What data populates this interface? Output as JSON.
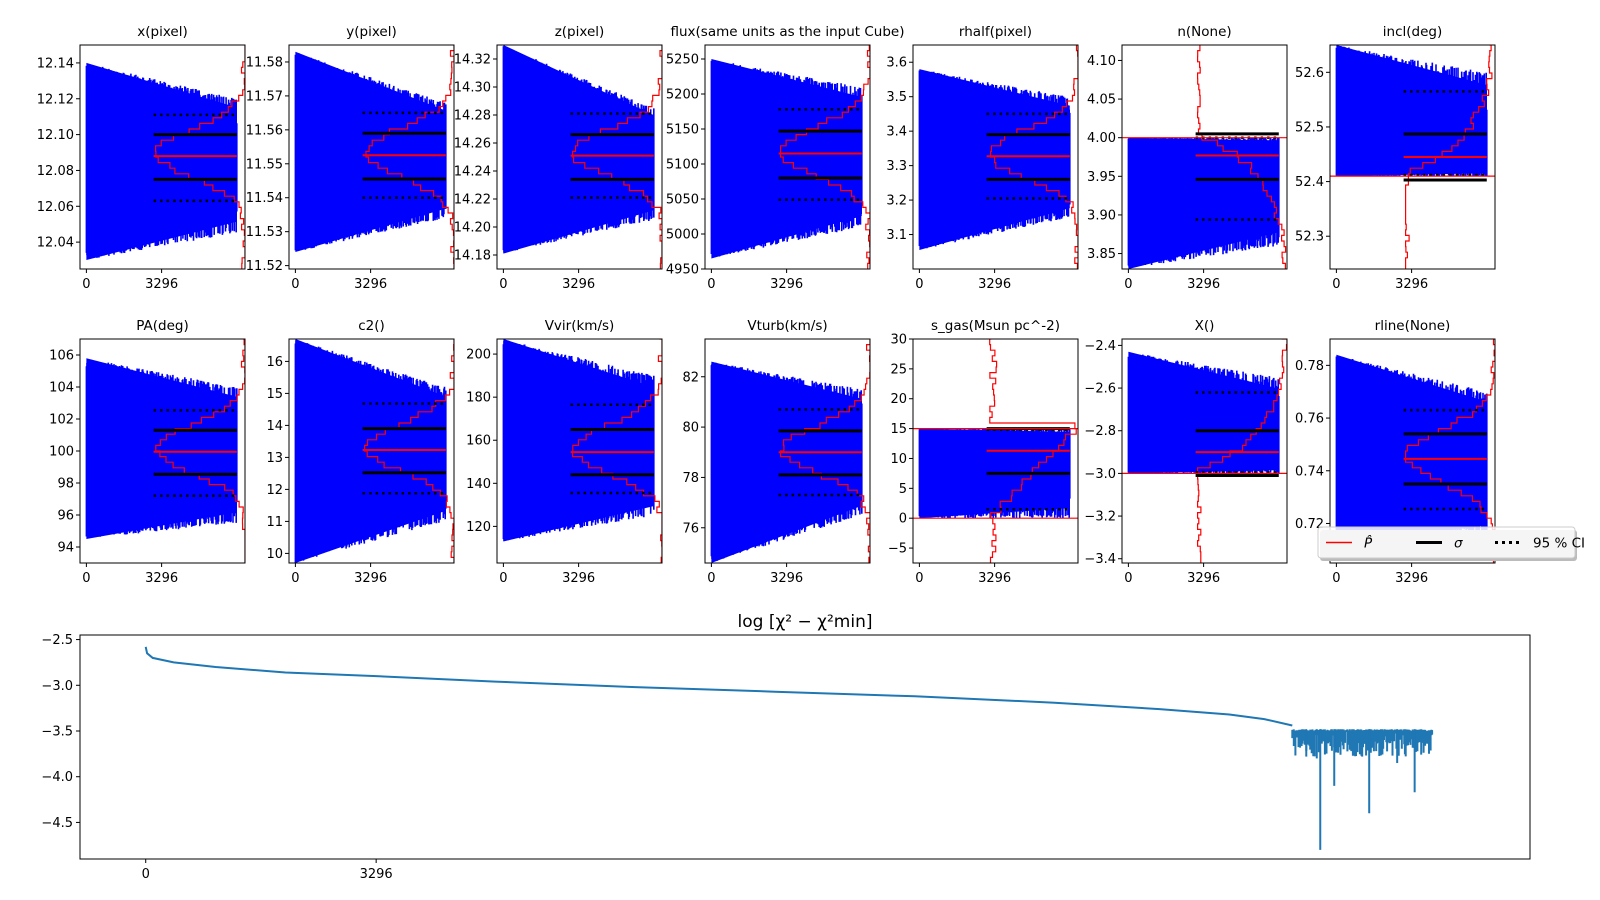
{
  "figure": {
    "x_tick_labels": [
      "0",
      "3296"
    ],
    "x_tick_values": [
      0,
      3296
    ],
    "n_steps": 6592,
    "n_steps_loss": 20000,
    "colors": {
      "trace": "#0000ff",
      "estimate": "#ff0000",
      "sigma": "#000000",
      "ci": "#000000",
      "loss": "#1f77b4",
      "frame": "#000000"
    }
  },
  "legend": {
    "placement": "lower-right of last panel",
    "items": [
      {
        "label": "P̂",
        "style": "red-solid"
      },
      {
        "label": "σ",
        "style": "black-solid"
      },
      {
        "label": "95 % CI",
        "style": "black-dotted"
      }
    ]
  },
  "chart_data": [
    {
      "type": "line",
      "title": "x(pixel)",
      "ylim": [
        12.025,
        12.15
      ],
      "yticks": [
        12.04,
        12.06,
        12.08,
        12.1,
        12.12,
        12.14
      ],
      "ytick_labels": [
        "12.04",
        "12.06",
        "12.08",
        "12.10",
        "12.12",
        "12.14"
      ],
      "estimate": 12.088,
      "sigma": [
        12.075,
        12.1
      ],
      "ci95": [
        12.063,
        12.111
      ],
      "trace_range": [
        12.03,
        12.14
      ],
      "late_range": [
        12.045,
        12.12
      ],
      "bound": null
    },
    {
      "type": "line",
      "title": "y(pixel)",
      "ylim": [
        11.519,
        11.585
      ],
      "yticks": [
        11.52,
        11.53,
        11.54,
        11.55,
        11.56,
        11.57,
        11.58
      ],
      "ytick_labels": [
        "11.52",
        "11.53",
        "11.54",
        "11.55",
        "11.56",
        "11.57",
        "11.58"
      ],
      "estimate": 11.5525,
      "sigma": [
        11.5455,
        11.559
      ],
      "ci95": [
        11.54,
        11.565
      ],
      "trace_range": [
        11.524,
        11.583
      ],
      "late_range": [
        11.534,
        11.568
      ],
      "bound": null
    },
    {
      "type": "line",
      "title": "z(pixel)",
      "ylim": [
        14.17,
        14.33
      ],
      "yticks": [
        14.18,
        14.2,
        14.22,
        14.24,
        14.26,
        14.28,
        14.3,
        14.32
      ],
      "ytick_labels": [
        "14.18",
        "14.20",
        "14.22",
        "14.24",
        "14.26",
        "14.28",
        "14.30",
        "14.32"
      ],
      "estimate": 14.251,
      "sigma": [
        14.234,
        14.266
      ],
      "ci95": [
        14.221,
        14.281
      ],
      "trace_range": [
        14.181,
        14.33
      ],
      "late_range": [
        14.205,
        14.285
      ],
      "bound": null
    },
    {
      "type": "line",
      "title": "flux(same units as the input Cube)",
      "ylim": [
        4950,
        5270
      ],
      "yticks": [
        4950,
        5000,
        5050,
        5100,
        5150,
        5200,
        5250
      ],
      "ytick_labels": [
        "4950",
        "5000",
        "5050",
        "5100",
        "5150",
        "5200",
        "5250"
      ],
      "estimate": 5115,
      "sigma": [
        5080,
        5147
      ],
      "ci95": [
        5049,
        5178
      ],
      "trace_range": [
        4965,
        5250
      ],
      "late_range": [
        5010,
        5210
      ],
      "bound": null
    },
    {
      "type": "line",
      "title": "rhalf(pixel)",
      "ylim": [
        3.0,
        3.65
      ],
      "yticks": [
        3.1,
        3.2,
        3.3,
        3.4,
        3.5,
        3.6
      ],
      "ytick_labels": [
        "3.1",
        "3.2",
        "3.3",
        "3.4",
        "3.5",
        "3.6"
      ],
      "estimate": 3.327,
      "sigma": [
        3.26,
        3.39
      ],
      "ci95": [
        3.205,
        3.45
      ],
      "trace_range": [
        3.055,
        3.58
      ],
      "late_range": [
        3.15,
        3.5
      ],
      "bound": null
    },
    {
      "type": "line",
      "title": "n(None)",
      "ylim": [
        3.83,
        4.12
      ],
      "yticks": [
        3.85,
        3.9,
        3.95,
        4.0,
        4.05,
        4.1
      ],
      "ytick_labels": [
        "3.85",
        "3.90",
        "3.95",
        "4.00",
        "4.05",
        "4.10"
      ],
      "estimate": 3.977,
      "sigma": [
        3.946,
        4.005
      ],
      "ci95": [
        3.894,
        4.0
      ],
      "trace_range": [
        3.83,
        4.0
      ],
      "late_range": [
        3.86,
        4.0
      ],
      "bound": 4.0,
      "bound_side": "upper"
    },
    {
      "type": "line",
      "title": "incl(deg)",
      "ylim": [
        52.24,
        52.65
      ],
      "yticks": [
        52.3,
        52.4,
        52.5,
        52.6
      ],
      "ytick_labels": [
        "52.3",
        "52.4",
        "52.5",
        "52.6"
      ],
      "estimate": 52.445,
      "sigma": [
        52.403,
        52.487
      ],
      "ci95": [
        52.412,
        52.565
      ],
      "trace_range": [
        52.41,
        52.65
      ],
      "late_range": [
        52.41,
        52.6
      ],
      "bound": 52.41,
      "bound_side": "lower"
    },
    {
      "type": "line",
      "title": "PA(deg)",
      "ylim": [
        93,
        107
      ],
      "yticks": [
        94,
        96,
        98,
        100,
        102,
        104,
        106
      ],
      "ytick_labels": [
        "94",
        "96",
        "98",
        "100",
        "102",
        "104",
        "106"
      ],
      "estimate": 99.95,
      "sigma": [
        98.55,
        101.3
      ],
      "ci95": [
        97.2,
        102.55
      ],
      "trace_range": [
        94.5,
        105.8
      ],
      "late_range": [
        95.5,
        104
      ],
      "bound": null
    },
    {
      "type": "line",
      "title": "c2()",
      "ylim": [
        9.7,
        16.7
      ],
      "yticks": [
        10,
        11,
        12,
        13,
        14,
        15,
        16
      ],
      "ytick_labels": [
        "10",
        "11",
        "12",
        "13",
        "14",
        "15",
        "16"
      ],
      "estimate": 13.23,
      "sigma": [
        12.52,
        13.9
      ],
      "ci95": [
        11.88,
        14.68
      ],
      "trace_range": [
        9.7,
        16.7
      ],
      "late_range": [
        11.0,
        15.2
      ],
      "bound": null
    },
    {
      "type": "line",
      "title": "Vvir(km/s)",
      "ylim": [
        103,
        207
      ],
      "yticks": [
        120,
        140,
        160,
        180,
        200
      ],
      "ytick_labels": [
        "120",
        "140",
        "160",
        "180",
        "200"
      ],
      "estimate": 154.5,
      "sigma": [
        144,
        165
      ],
      "ci95": [
        135.5,
        176.5
      ],
      "trace_range": [
        113,
        207
      ],
      "late_range": [
        125,
        190
      ],
      "bound": null
    },
    {
      "type": "line",
      "title": "Vturb(km/s)",
      "ylim": [
        74.6,
        83.5
      ],
      "yticks": [
        76,
        78,
        80,
        82
      ],
      "ytick_labels": [
        "76",
        "78",
        "80",
        "82"
      ],
      "estimate": 79.0,
      "sigma": [
        78.1,
        79.85
      ],
      "ci95": [
        77.3,
        80.7
      ],
      "trace_range": [
        74.6,
        82.6
      ],
      "late_range": [
        76.5,
        81.5
      ],
      "bound": null
    },
    {
      "type": "line",
      "title": "s_gas(Msun pc^-2)",
      "ylim": [
        -7.5,
        30
      ],
      "yticks": [
        -5,
        0,
        5,
        10,
        15,
        20,
        25,
        30
      ],
      "ytick_labels": [
        "−5",
        "0",
        "5",
        "10",
        "15",
        "20",
        "25",
        "30"
      ],
      "estimate": 11.3,
      "sigma": [
        7.5,
        15.0
      ],
      "ci95": [
        1.5,
        14.8
      ],
      "trace_range": [
        0,
        15
      ],
      "late_range": [
        0,
        15
      ],
      "bound": 15,
      "bound_side": "upper",
      "bound2": 0
    },
    {
      "type": "line",
      "title": "X()",
      "ylim": [
        -3.42,
        -2.37
      ],
      "yticks": [
        -3.4,
        -3.2,
        -3.0,
        -2.8,
        -2.6,
        -2.4
      ],
      "ytick_labels": [
        "−3.4",
        "−3.2",
        "−3.0",
        "−2.8",
        "−2.6",
        "−2.4"
      ],
      "estimate": -2.9,
      "sigma": [
        -3.01,
        -2.8
      ],
      "ci95": [
        -2.995,
        -2.62
      ],
      "trace_range": [
        -3.0,
        -2.43
      ],
      "late_range": [
        -3.0,
        -2.55
      ],
      "bound": -3.0,
      "bound_side": "lower"
    },
    {
      "type": "line",
      "title": "rline(None)",
      "ylim": [
        0.705,
        0.79
      ],
      "yticks": [
        0.7,
        0.72,
        0.74,
        0.76,
        0.78
      ],
      "ytick_labels": [
        "0.70",
        "0.72",
        "0.74",
        "0.76",
        "0.78"
      ],
      "estimate": 0.7445,
      "sigma": [
        0.735,
        0.754
      ],
      "ci95": [
        0.7255,
        0.763
      ],
      "trace_range": [
        0.711,
        0.784
      ],
      "late_range": [
        0.715,
        0.77
      ],
      "bound": null
    },
    {
      "type": "line",
      "title": "log  [χ² − χ²min]",
      "xlabel": "",
      "ylabel": "",
      "ylim": [
        -4.9,
        -2.45
      ],
      "yticks": [
        -4.5,
        -4.0,
        -3.5,
        -3.0,
        -2.5
      ],
      "ytick_labels": [
        "−4.5",
        "−4.0",
        "−3.5",
        "−3.0",
        "−2.5"
      ],
      "xlim": [
        -940,
        19800
      ],
      "xticks": [
        0,
        3296
      ],
      "xtick_labels": [
        "0",
        "3296"
      ],
      "points": [
        [
          0,
          -2.58
        ],
        [
          20,
          -2.65
        ],
        [
          100,
          -2.7
        ],
        [
          400,
          -2.75
        ],
        [
          1000,
          -2.8
        ],
        [
          2000,
          -2.86
        ],
        [
          3296,
          -2.9
        ],
        [
          5000,
          -2.96
        ],
        [
          7000,
          -3.02
        ],
        [
          9000,
          -3.07
        ],
        [
          11000,
          -3.12
        ],
        [
          13000,
          -3.19
        ],
        [
          14500,
          -3.26
        ],
        [
          15500,
          -3.32
        ],
        [
          16000,
          -3.37
        ],
        [
          16400,
          -3.44
        ]
      ],
      "noisy_segment": {
        "x_range": [
          16400,
          18400
        ],
        "top": -3.48,
        "deep_dips": [
          [
            16600,
            -3.78
          ],
          [
            16750,
            -3.8
          ],
          [
            16800,
            -4.8
          ],
          [
            17000,
            -4.1
          ],
          [
            17500,
            -4.4
          ],
          [
            17900,
            -3.85
          ],
          [
            18150,
            -4.17
          ]
        ]
      }
    }
  ]
}
